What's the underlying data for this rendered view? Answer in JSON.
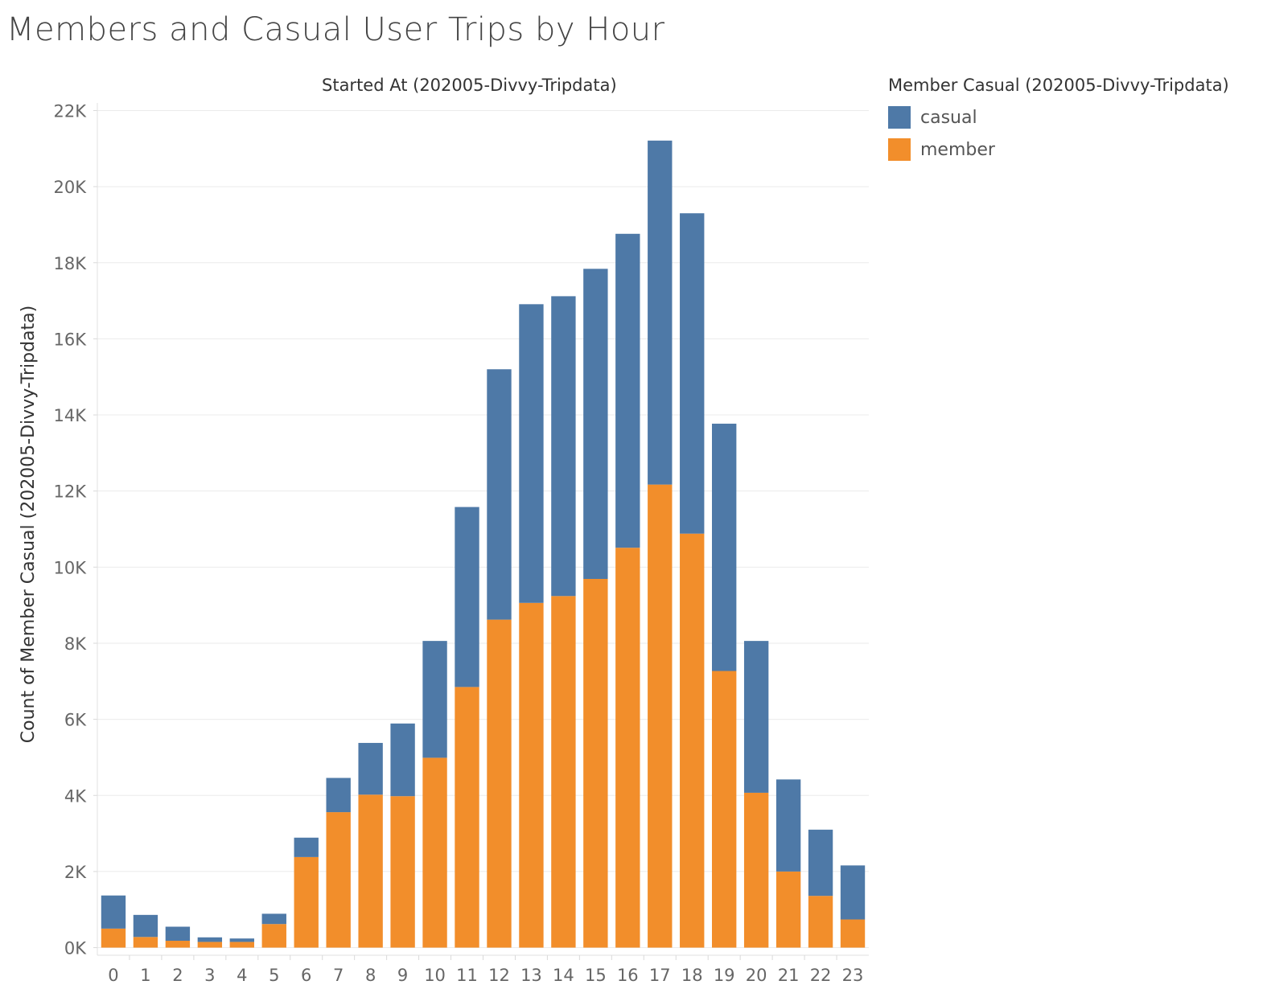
{
  "title": "Members and Casual User Trips by Hour",
  "chart_data": {
    "type": "bar",
    "stacked": true,
    "column_header": "Started At (202005-Divvy-Tripdata)",
    "ylabel": "Count of Member Casual (202005-Divvy-Tripdata)",
    "xlabel": "",
    "ylim": [
      -200,
      22200
    ],
    "yticks": [
      0,
      2000,
      4000,
      6000,
      8000,
      10000,
      12000,
      14000,
      16000,
      18000,
      20000,
      22000
    ],
    "ytick_labels": [
      "0K",
      "2K",
      "4K",
      "6K",
      "8K",
      "10K",
      "12K",
      "14K",
      "16K",
      "18K",
      "20K",
      "22K"
    ],
    "categories": [
      "0",
      "1",
      "2",
      "3",
      "4",
      "5",
      "6",
      "7",
      "8",
      "9",
      "10",
      "11",
      "12",
      "13",
      "14",
      "15",
      "16",
      "17",
      "18",
      "19",
      "20",
      "21",
      "22",
      "23"
    ],
    "series": [
      {
        "name": "member",
        "color": "#f28e2b",
        "values": [
          500,
          280,
          180,
          150,
          150,
          620,
          2380,
          3560,
          4020,
          3980,
          4990,
          6850,
          8620,
          9060,
          9240,
          9690,
          10510,
          12170,
          10880,
          7270,
          4070,
          2000,
          1360,
          740
        ]
      },
      {
        "name": "casual",
        "color": "#4e79a7",
        "values": [
          870,
          580,
          370,
          120,
          90,
          270,
          510,
          900,
          1360,
          1910,
          3070,
          4730,
          6580,
          7850,
          7880,
          8150,
          8250,
          9040,
          8420,
          6500,
          3990,
          2420,
          1740,
          1420
        ]
      }
    ],
    "legend": {
      "title": "Member Casual (202005-Divvy-Tripdata)",
      "position": "top-right",
      "items": [
        "casual",
        "member"
      ]
    }
  }
}
